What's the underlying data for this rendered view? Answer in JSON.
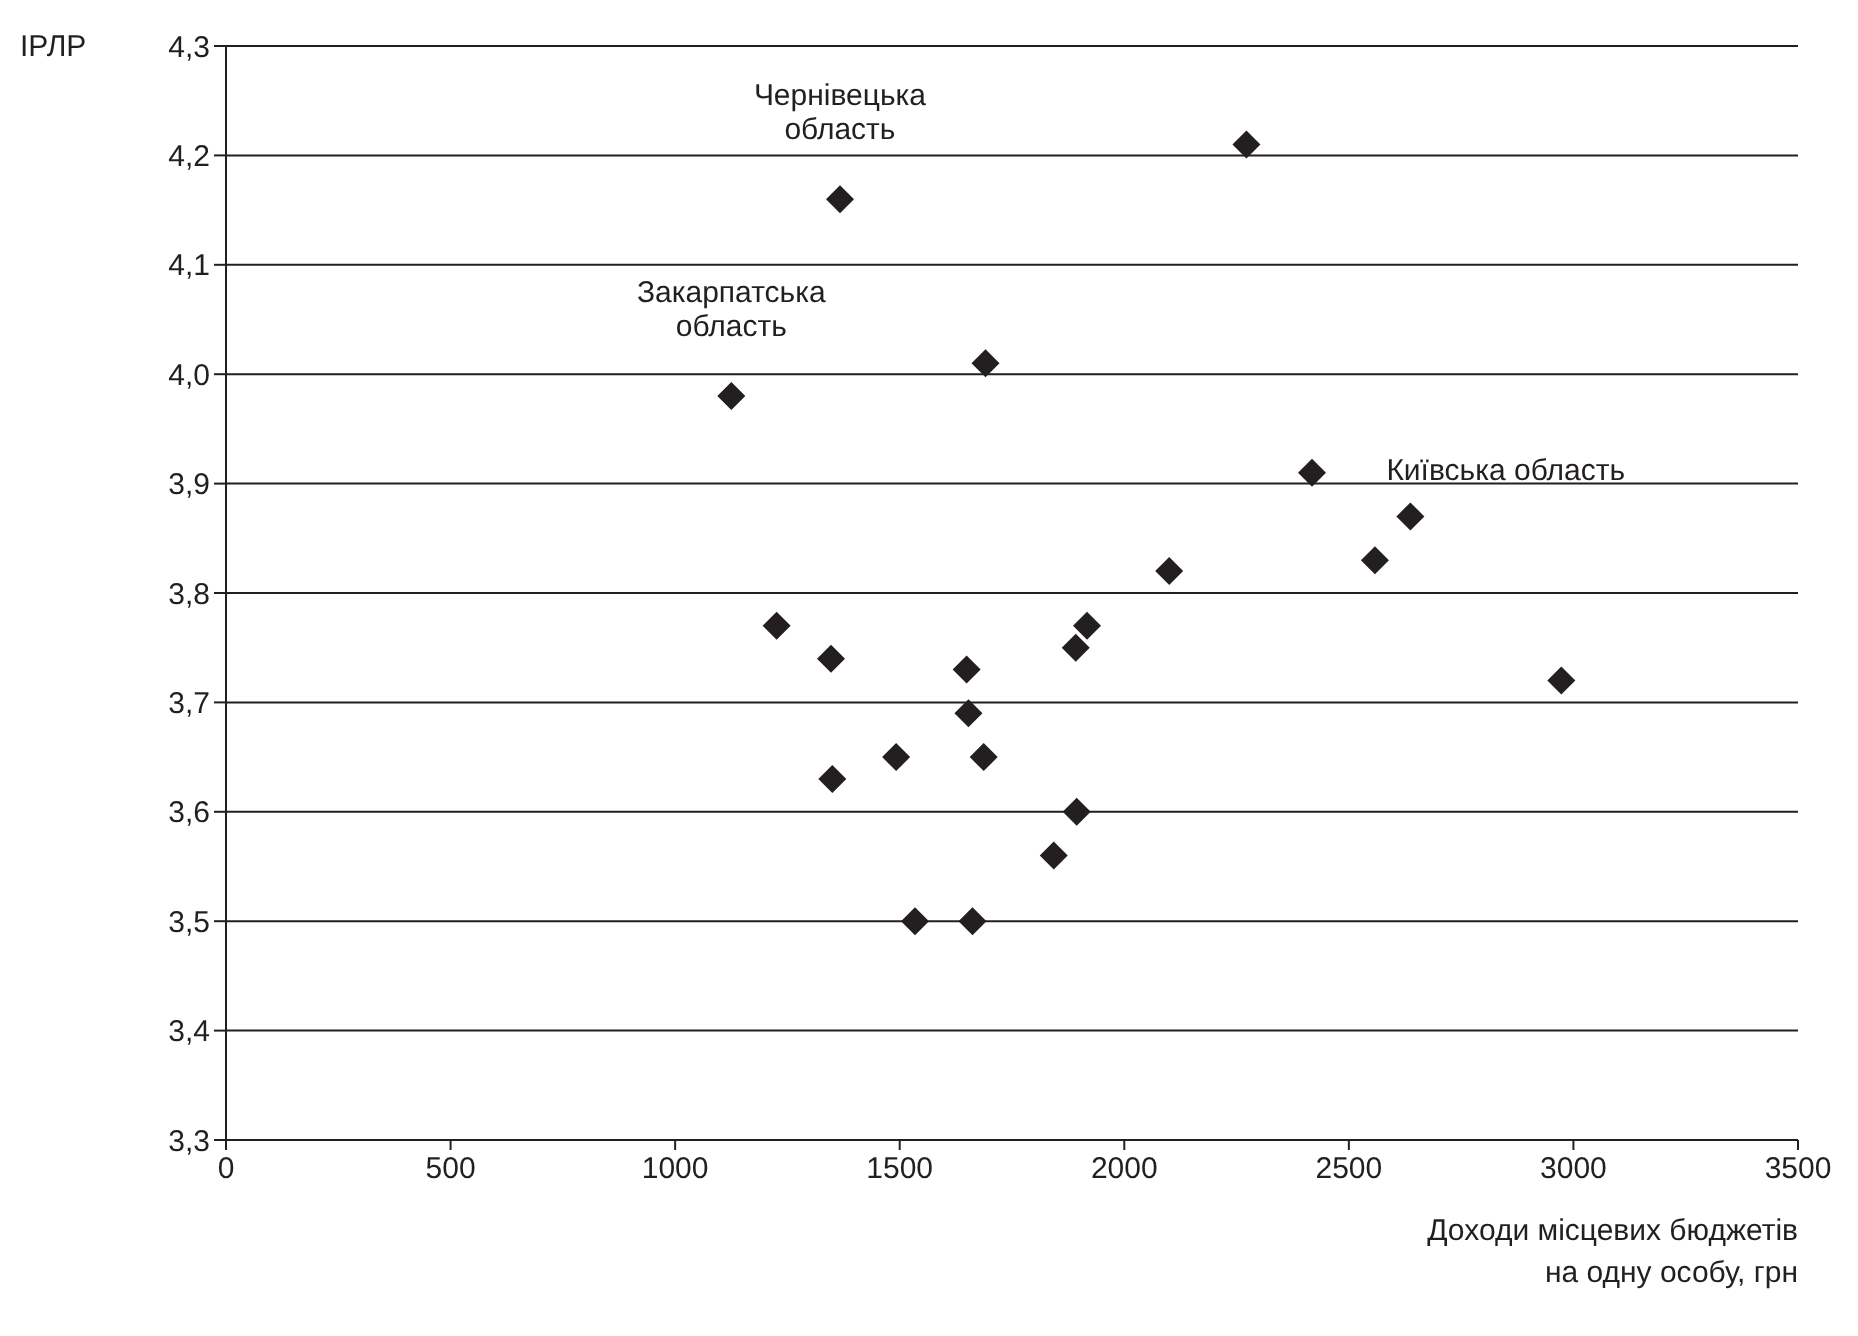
{
  "chart_data": {
    "type": "scatter",
    "xlabel": "Доходи місцевих бюджетів\nна одну особу, грн",
    "ylabel": "ІРЛР",
    "series": [
      {
        "color": "#231f20",
        "x": [
          1367,
          1125,
          1691,
          1226,
          1347,
          1649,
          1653,
          1492,
          1687,
          1350,
          1534,
          1662,
          2272,
          2418,
          2637,
          2558,
          2100,
          1917,
          1892,
          2973,
          1894,
          1843
        ],
        "values": [
          4.16,
          3.98,
          4.01,
          3.77,
          3.74,
          3.73,
          3.69,
          3.65,
          3.65,
          3.63,
          3.5,
          3.5,
          4.21,
          3.91,
          3.87,
          3.83,
          3.82,
          3.77,
          3.75,
          3.72,
          3.6,
          3.56
        ]
      }
    ],
    "xlim": [
      0,
      3500
    ],
    "xticks": [
      0,
      500,
      1000,
      1500,
      2000,
      2500,
      3000,
      3500
    ],
    "ylim": [
      3.3,
      4.3
    ],
    "yticks": [
      {
        "value": 3.3,
        "label": "3,3"
      },
      {
        "value": 3.4,
        "label": "3,4"
      },
      {
        "value": 3.5,
        "label": "3,5"
      },
      {
        "value": 3.6,
        "label": "3,6"
      },
      {
        "value": 3.7,
        "label": "3,7"
      },
      {
        "value": 3.8,
        "label": "3,8"
      },
      {
        "value": 3.9,
        "label": "3,9"
      },
      {
        "value": 4.0,
        "label": "4,0"
      },
      {
        "value": 4.1,
        "label": "4,1"
      },
      {
        "value": 4.2,
        "label": "4,2"
      },
      {
        "value": 4.3,
        "label": "4,3"
      }
    ],
    "annotations": [
      {
        "text": "Чернівецька\nобласть",
        "x": 1367,
        "y": 4.16
      },
      {
        "text": "Закарпатська\nобласть",
        "x": 1125,
        "y": 3.98
      },
      {
        "text": "Київська область",
        "x": 2637,
        "y": 3.87
      }
    ],
    "grid": "y",
    "marker": "diamond",
    "legend": false
  }
}
